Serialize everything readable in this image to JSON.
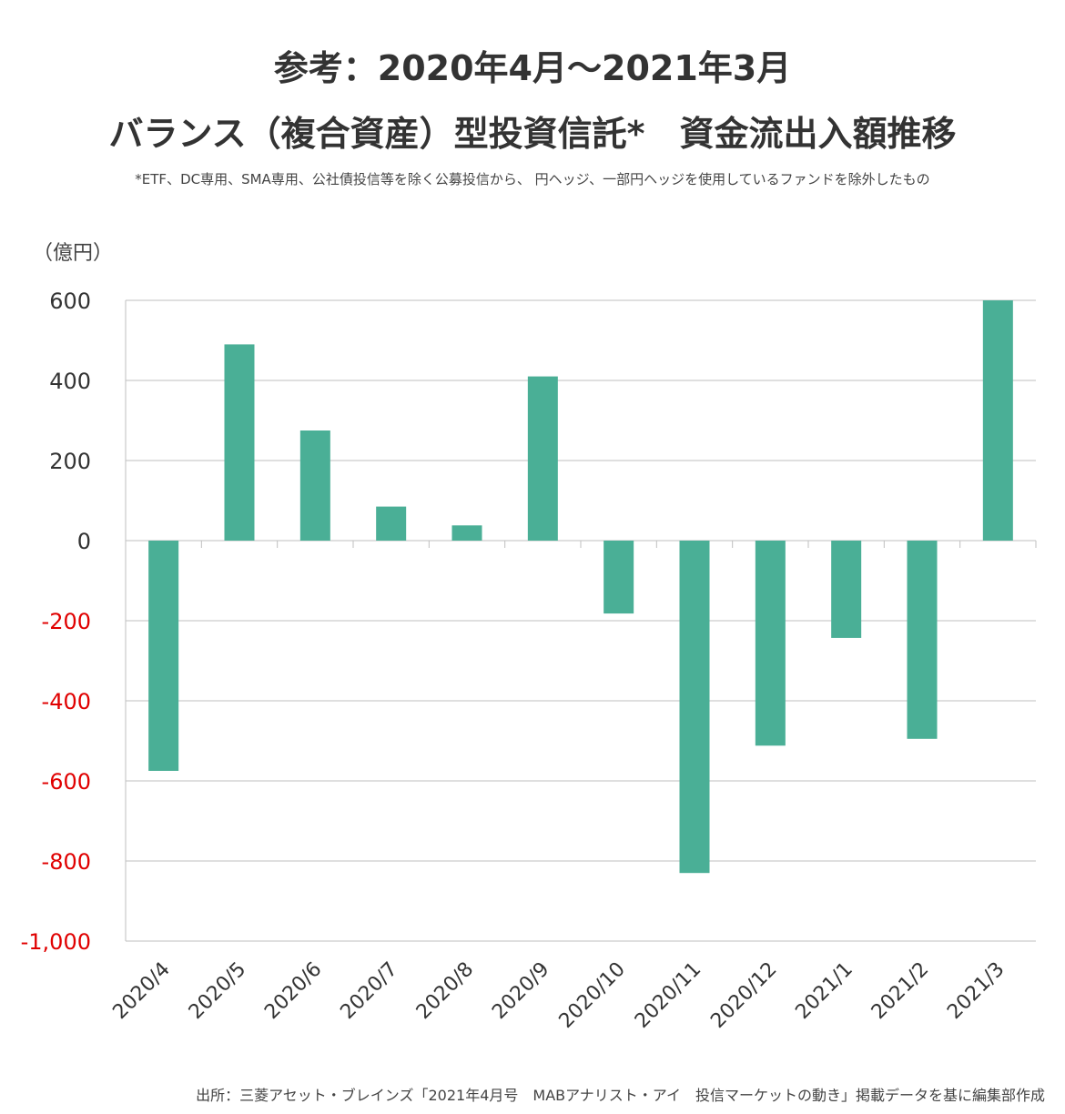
{
  "header": {
    "title_line1": "参考：2020年4月～2021年3月",
    "title_line2": "バランス（複合資産）型投資信託*　資金流出入額推移",
    "footnote": "*ETF、DC専用、SMA専用、公社債投信等を除く公募投信から、 円ヘッジ、一部円ヘッジを使用しているファンドを除外したもの"
  },
  "source": "出所：三菱アセット・ブレインズ「2021年4月号　MABアナリスト・アイ　投信マーケットの動き」掲載データを基に編集部作成",
  "colors": {
    "bar": "#4aaf96",
    "grid": "#bfbfbf",
    "tick_positive": "#333333",
    "tick_negative": "#e00000"
  },
  "chart_data": {
    "type": "bar",
    "title": "参考：2020年4月～2021年3月 バランス（複合資産）型投資信託*　資金流出入額推移",
    "ylabel": "（億円）",
    "xlabel": "",
    "categories": [
      "2020/4",
      "2020/5",
      "2020/6",
      "2020/7",
      "2020/8",
      "2020/9",
      "2020/10",
      "2020/11",
      "2020/12",
      "2021/1",
      "2021/2",
      "2021/3"
    ],
    "values": [
      -575,
      490,
      275,
      85,
      38,
      410,
      -182,
      -830,
      -512,
      -243,
      -495,
      600
    ],
    "ylim": [
      -1000,
      600
    ],
    "yticks": [
      600,
      400,
      200,
      0,
      -200,
      -400,
      -600,
      -800,
      -1000
    ],
    "ytick_labels": [
      "600",
      "400",
      "200",
      "0",
      "-200",
      "-400",
      "-600",
      "-800",
      "-1,000"
    ],
    "grid": true,
    "legend": "none"
  }
}
